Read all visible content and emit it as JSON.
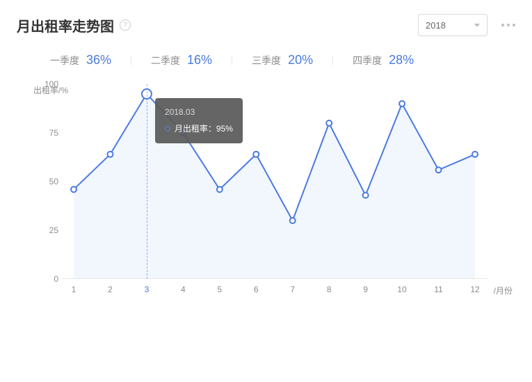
{
  "title": "月出租率走势图",
  "year_select": {
    "value": "2018"
  },
  "quarters": [
    {
      "label": "一季度",
      "value": "36%"
    },
    {
      "label": "二季度",
      "value": "16%"
    },
    {
      "label": "三季度",
      "value": "20%"
    },
    {
      "label": "四季度",
      "value": "28%"
    }
  ],
  "chart": {
    "type": "line",
    "y_label": "出租率/%",
    "x_label": "/月份",
    "ylim": [
      0,
      100
    ],
    "yticks": [
      0,
      25,
      50,
      75,
      100
    ],
    "categories": [
      "1",
      "2",
      "3",
      "4",
      "5",
      "6",
      "7",
      "8",
      "9",
      "10",
      "11",
      "12"
    ],
    "values": [
      46,
      64,
      95,
      75,
      46,
      64,
      30,
      80,
      43,
      90,
      56,
      64
    ],
    "line_color": "#4a7ae0",
    "fill_color": "#eaf0fb",
    "fill_opacity": 0.6,
    "marker_fill": "#ffffff",
    "marker_stroke": "#4a7ae0",
    "marker_radius": 4,
    "highlight_marker_radius": 7,
    "line_width": 2,
    "axis_color": "#e8e8e8",
    "background_color": "#ffffff",
    "highlight_index": 2,
    "tooltip": {
      "title": "2018.03",
      "series_label": "月出租率：",
      "value": "95%"
    }
  },
  "colors": {
    "text_primary": "#333333",
    "text_secondary": "#8c8c8c",
    "accent": "#4a7ae0",
    "border": "#d9d9d9",
    "divider": "#e8e8e8"
  }
}
